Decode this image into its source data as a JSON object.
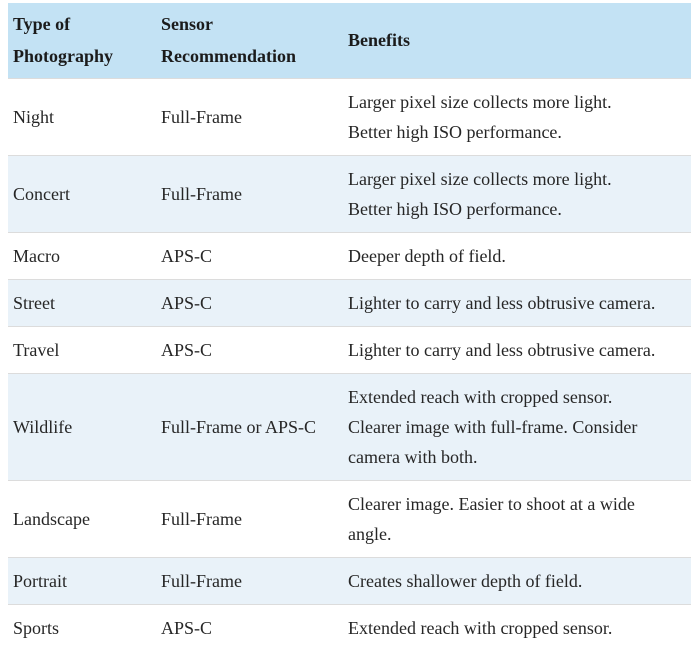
{
  "colors": {
    "header_bg": "#c3e2f4",
    "stripe_bg": "#e9f2f9",
    "row_bg": "#ffffff",
    "border": "#dcdcdc",
    "text": "#262626",
    "header_text": "#1b1b1b"
  },
  "chart_data": {
    "type": "table",
    "columns": [
      "Type of Photography",
      "Sensor Recommendation",
      "Benefits"
    ],
    "rows": [
      [
        "Night",
        "Full-Frame",
        "Larger pixel size collects more light. Better high ISO performance."
      ],
      [
        "Concert",
        "Full-Frame",
        "Larger pixel size collects more light. Better high ISO performance."
      ],
      [
        "Macro",
        "APS-C",
        "Deeper depth of field."
      ],
      [
        "Street",
        "APS-C",
        "Lighter to carry and less obtrusive camera."
      ],
      [
        "Travel",
        "APS-C",
        "Lighter to carry and less obtrusive camera."
      ],
      [
        "Wildlife",
        "Full-Frame or APS-C",
        "Extended reach with cropped sensor. Clearer image with full-frame. Consider camera with both."
      ],
      [
        "Landscape",
        "Full-Frame",
        "Clearer image. Easier to shoot at a wide angle."
      ],
      [
        "Portrait",
        "Full-Frame",
        "Creates shallower depth of field."
      ],
      [
        "Sports",
        "APS-C",
        "Extended reach with cropped sensor."
      ]
    ]
  },
  "table": {
    "columns": [
      {
        "label": "Type of\nPhotography"
      },
      {
        "label": "Sensor\nRecommendation"
      },
      {
        "label": "Benefits"
      }
    ],
    "rows": [
      {
        "type": "Night",
        "sensor": "Full-Frame",
        "benefits": "Larger pixel size collects more light.\nBetter high ISO performance."
      },
      {
        "type": "Concert",
        "sensor": "Full-Frame",
        "benefits": "Larger pixel size collects more light.\nBetter high ISO performance."
      },
      {
        "type": "Macro",
        "sensor": "APS-C",
        "benefits": "Deeper depth of field."
      },
      {
        "type": "Street",
        "sensor": "APS-C",
        "benefits": "Lighter to carry and less obtrusive camera."
      },
      {
        "type": "Travel",
        "sensor": "APS-C",
        "benefits": "Lighter to carry and less obtrusive camera."
      },
      {
        "type": "Wildlife",
        "sensor": "Full-Frame or APS-C",
        "benefits": "Extended reach with cropped sensor.\nClearer image with full-frame. Consider\ncamera with both."
      },
      {
        "type": "Landscape",
        "sensor": "Full-Frame",
        "benefits": "Clearer image. Easier to shoot at a wide\nangle."
      },
      {
        "type": "Portrait",
        "sensor": "Full-Frame",
        "benefits": "Creates shallower depth of field."
      },
      {
        "type": "Sports",
        "sensor": "APS-C",
        "benefits": "Extended reach with cropped sensor."
      }
    ]
  }
}
